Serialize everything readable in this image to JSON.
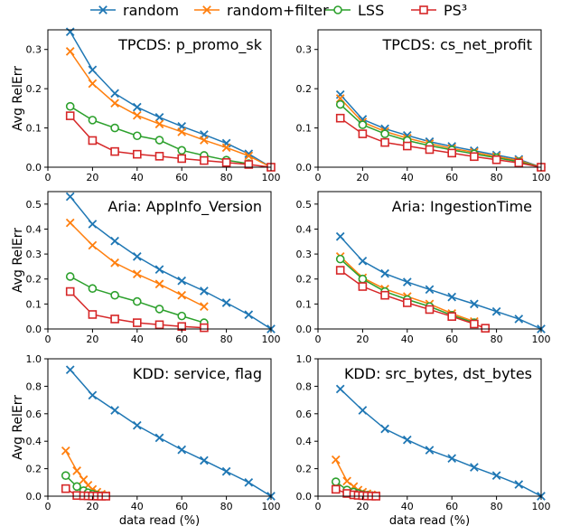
{
  "legend": {
    "placement": "top-center",
    "entries": [
      {
        "label": "random",
        "color": "#1f77b4",
        "marker": "x"
      },
      {
        "label": "random+filter",
        "color": "#ff7f0e",
        "marker": "x"
      },
      {
        "label": "LSS",
        "color": "#2ca02c",
        "marker": "circle"
      },
      {
        "label": "PS³",
        "color": "#d62728",
        "marker": "square"
      }
    ]
  },
  "chart_data": [
    {
      "type": "line",
      "title": "TPCDS: p_promo_sk",
      "ylabel": "Avg RelErr",
      "xlabel": "",
      "xlim": [
        0,
        100
      ],
      "ylim": [
        0,
        0.35
      ],
      "xticks": [
        "0",
        "20",
        "40",
        "60",
        "80",
        "100"
      ],
      "yticks": [
        "0.0",
        "0.1",
        "0.2",
        "0.3"
      ],
      "grid": false,
      "series": [
        {
          "name": "random",
          "x": [
            10,
            20,
            30,
            40,
            50,
            60,
            70,
            80,
            90,
            100
          ],
          "y": [
            0.345,
            0.248,
            0.188,
            0.153,
            0.127,
            0.104,
            0.083,
            0.061,
            0.034,
            0.0
          ]
        },
        {
          "name": "random+filter",
          "x": [
            10,
            20,
            30,
            40,
            50,
            60,
            70,
            80,
            90,
            100
          ],
          "y": [
            0.295,
            0.213,
            0.163,
            0.132,
            0.11,
            0.09,
            0.069,
            0.05,
            0.029,
            0.0
          ]
        },
        {
          "name": "LSS",
          "x": [
            10,
            20,
            30,
            40,
            50,
            60,
            70,
            80,
            90
          ],
          "y": [
            0.155,
            0.12,
            0.1,
            0.08,
            0.069,
            0.043,
            0.03,
            0.018,
            0.009
          ]
        },
        {
          "name": "PS³",
          "x": [
            10,
            20,
            30,
            40,
            50,
            60,
            70,
            80,
            90,
            100
          ],
          "y": [
            0.131,
            0.068,
            0.04,
            0.033,
            0.028,
            0.022,
            0.017,
            0.012,
            0.007,
            0.0
          ]
        }
      ]
    },
    {
      "type": "line",
      "title": "TPCDS: cs_net_profit",
      "ylabel": "",
      "xlabel": "",
      "xlim": [
        0,
        100
      ],
      "ylim": [
        0,
        0.35
      ],
      "xticks": [
        "0",
        "20",
        "40",
        "60",
        "80",
        "100"
      ],
      "yticks": [
        "0.0",
        "0.1",
        "0.2",
        "0.3"
      ],
      "grid": false,
      "series": [
        {
          "name": "random",
          "x": [
            10,
            20,
            30,
            40,
            50,
            60,
            70,
            80,
            90,
            100
          ],
          "y": [
            0.185,
            0.122,
            0.098,
            0.081,
            0.065,
            0.053,
            0.042,
            0.031,
            0.02,
            0.0
          ]
        },
        {
          "name": "random+filter",
          "x": [
            10,
            20,
            30,
            40,
            50,
            60,
            70,
            80,
            90,
            100
          ],
          "y": [
            0.175,
            0.115,
            0.091,
            0.074,
            0.06,
            0.048,
            0.038,
            0.027,
            0.017,
            0.0
          ]
        },
        {
          "name": "LSS",
          "x": [
            10,
            20,
            30,
            40,
            50,
            60,
            70,
            80,
            90,
            100
          ],
          "y": [
            0.16,
            0.108,
            0.085,
            0.068,
            0.055,
            0.044,
            0.034,
            0.024,
            0.014,
            0.0
          ]
        },
        {
          "name": "PS³",
          "x": [
            10,
            20,
            30,
            40,
            50,
            60,
            70,
            80,
            90,
            100
          ],
          "y": [
            0.125,
            0.085,
            0.063,
            0.054,
            0.045,
            0.036,
            0.027,
            0.019,
            0.011,
            0.0
          ]
        }
      ]
    },
    {
      "type": "line",
      "title": "Aria: AppInfo_Version",
      "ylabel": "Avg RelErr",
      "xlabel": "",
      "xlim": [
        0,
        100
      ],
      "ylim": [
        0,
        0.55
      ],
      "xticks": [
        "0",
        "20",
        "40",
        "60",
        "80",
        "100"
      ],
      "yticks": [
        "0.0",
        "0.1",
        "0.2",
        "0.3",
        "0.4",
        "0.5"
      ],
      "grid": false,
      "series": [
        {
          "name": "random",
          "x": [
            10,
            20,
            30,
            40,
            50,
            60,
            70,
            80,
            90,
            100
          ],
          "y": [
            0.53,
            0.42,
            0.352,
            0.29,
            0.238,
            0.193,
            0.152,
            0.105,
            0.057,
            0.0
          ]
        },
        {
          "name": "random+filter",
          "x": [
            10,
            20,
            30,
            40,
            50,
            60,
            70
          ],
          "y": [
            0.425,
            0.335,
            0.265,
            0.22,
            0.18,
            0.135,
            0.09
          ]
        },
        {
          "name": "LSS",
          "x": [
            10,
            20,
            30,
            40,
            50,
            60,
            70
          ],
          "y": [
            0.21,
            0.162,
            0.135,
            0.11,
            0.08,
            0.052,
            0.025
          ]
        },
        {
          "name": "PS³",
          "x": [
            10,
            20,
            30,
            40,
            50,
            60,
            70
          ],
          "y": [
            0.15,
            0.058,
            0.04,
            0.025,
            0.017,
            0.01,
            0.005
          ]
        }
      ]
    },
    {
      "type": "line",
      "title": "Aria: IngestionTime",
      "ylabel": "",
      "xlabel": "",
      "xlim": [
        0,
        100
      ],
      "ylim": [
        0,
        0.55
      ],
      "xticks": [
        "0",
        "20",
        "40",
        "60",
        "80",
        "100"
      ],
      "yticks": [
        "0.0",
        "0.1",
        "0.2",
        "0.3",
        "0.4",
        "0.5"
      ],
      "grid": false,
      "series": [
        {
          "name": "random",
          "x": [
            10,
            20,
            30,
            40,
            50,
            60,
            70,
            80,
            90,
            100
          ],
          "y": [
            0.37,
            0.272,
            0.222,
            0.188,
            0.158,
            0.128,
            0.1,
            0.07,
            0.04,
            0.0
          ]
        },
        {
          "name": "random+filter",
          "x": [
            10,
            20,
            30,
            40,
            50,
            60,
            70
          ],
          "y": [
            0.29,
            0.205,
            0.16,
            0.13,
            0.1,
            0.062,
            0.03
          ]
        },
        {
          "name": "LSS",
          "x": [
            10,
            20,
            30,
            40,
            50,
            60,
            70
          ],
          "y": [
            0.28,
            0.2,
            0.15,
            0.118,
            0.09,
            0.055,
            0.025
          ]
        },
        {
          "name": "PS³",
          "x": [
            10,
            20,
            30,
            40,
            50,
            60,
            70,
            75
          ],
          "y": [
            0.235,
            0.17,
            0.135,
            0.105,
            0.078,
            0.05,
            0.02,
            0.003
          ]
        }
      ]
    },
    {
      "type": "line",
      "title": "KDD: service, flag",
      "ylabel": "Avg RelErr",
      "xlabel": "data read (%)",
      "xlim": [
        0,
        100
      ],
      "ylim": [
        0,
        1.0
      ],
      "xticks": [
        "0",
        "20",
        "40",
        "60",
        "80",
        "100"
      ],
      "yticks": [
        "0.0",
        "0.2",
        "0.4",
        "0.6",
        "0.8",
        "1.0"
      ],
      "grid": false,
      "series": [
        {
          "name": "random",
          "x": [
            10,
            20,
            30,
            40,
            50,
            60,
            70,
            80,
            90,
            100
          ],
          "y": [
            0.92,
            0.735,
            0.625,
            0.515,
            0.425,
            0.338,
            0.26,
            0.18,
            0.1,
            0.0
          ]
        },
        {
          "name": "random+filter",
          "x": [
            8,
            13,
            16,
            18,
            20,
            22,
            24,
            26
          ],
          "y": [
            0.33,
            0.185,
            0.12,
            0.08,
            0.05,
            0.03,
            0.015,
            0.005
          ]
        },
        {
          "name": "LSS",
          "x": [
            8,
            13,
            16,
            18,
            20,
            22,
            24,
            26
          ],
          "y": [
            0.15,
            0.07,
            0.04,
            0.025,
            0.015,
            0.008,
            0.004,
            0.002
          ]
        },
        {
          "name": "PS³",
          "x": [
            8,
            13,
            16,
            18,
            20,
            22,
            24,
            26
          ],
          "y": [
            0.055,
            0.005,
            0.003,
            0.002,
            0.001,
            0.001,
            0.0,
            0.0
          ]
        }
      ]
    },
    {
      "type": "line",
      "title": "KDD: src_bytes, dst_bytes",
      "ylabel": "",
      "xlabel": "data read (%)",
      "xlim": [
        0,
        100
      ],
      "ylim": [
        0,
        1.0
      ],
      "xticks": [
        "0",
        "20",
        "40",
        "60",
        "80",
        "100"
      ],
      "yticks": [
        "0.0",
        "0.2",
        "0.4",
        "0.6",
        "0.8",
        "1.0"
      ],
      "grid": false,
      "series": [
        {
          "name": "random",
          "x": [
            10,
            20,
            30,
            40,
            50,
            60,
            70,
            80,
            90,
            100
          ],
          "y": [
            0.78,
            0.625,
            0.49,
            0.41,
            0.335,
            0.275,
            0.21,
            0.15,
            0.085,
            0.0
          ]
        },
        {
          "name": "random+filter",
          "x": [
            8,
            13,
            16,
            18,
            20,
            22,
            24,
            26
          ],
          "y": [
            0.265,
            0.11,
            0.07,
            0.045,
            0.03,
            0.018,
            0.01,
            0.005
          ]
        },
        {
          "name": "LSS",
          "x": [
            8,
            13,
            16,
            18,
            20,
            22,
            24,
            26
          ],
          "y": [
            0.105,
            0.045,
            0.03,
            0.02,
            0.012,
            0.007,
            0.004,
            0.002
          ]
        },
        {
          "name": "PS³",
          "x": [
            8,
            13,
            16,
            18,
            20,
            22,
            24,
            26
          ],
          "y": [
            0.05,
            0.02,
            0.01,
            0.006,
            0.004,
            0.002,
            0.001,
            0.0
          ]
        }
      ]
    }
  ]
}
